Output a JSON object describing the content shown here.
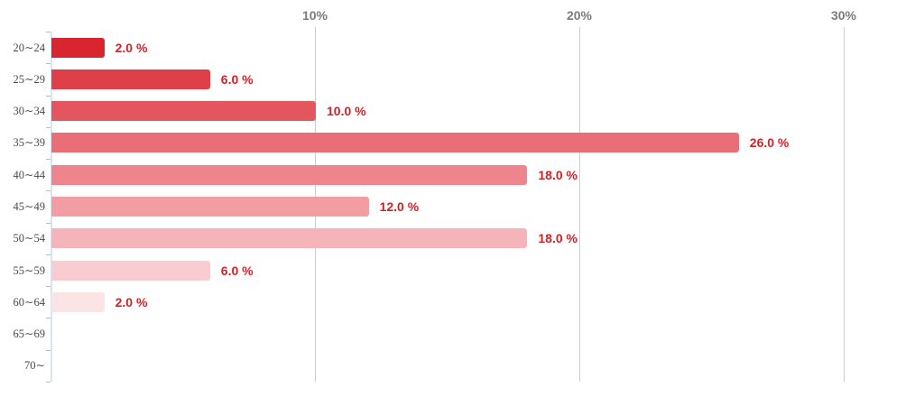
{
  "chart_data": {
    "type": "bar",
    "orientation": "horizontal",
    "title": "",
    "xlabel": "",
    "ylabel": "",
    "categories": [
      "20∼24",
      "25∼29",
      "30∼34",
      "35∼39",
      "40∼44",
      "45∼49",
      "50∼54",
      "55∼59",
      "60∼64",
      "65∼69",
      "70∼"
    ],
    "values": [
      2.0,
      6.0,
      10.0,
      26.0,
      18.0,
      12.0,
      18.0,
      6.0,
      2.0,
      0,
      0
    ],
    "data_labels": [
      "2.0 %",
      "6.0 %",
      "10.0 %",
      "26.0 %",
      "18.0 %",
      "12.0 %",
      "18.0 %",
      "6.0 %",
      "2.0 %",
      "",
      ""
    ],
    "bar_colors": [
      "#d8252f",
      "#de3f49",
      "#e4565f",
      "#ea6e77",
      "#ee858d",
      "#f19da3",
      "#f4b4b9",
      "#f8ccd0",
      "#fbe4e6",
      "",
      ""
    ],
    "x_tick_labels": [
      "10%",
      "20%",
      "30%"
    ],
    "x_tick_values": [
      10,
      20,
      30
    ],
    "xlim": [
      0,
      33
    ],
    "grid": "vertical",
    "legend": "none",
    "colors": {
      "value_label": "#d71f25",
      "x_axis_label": "#7b7b7b",
      "category_label": "#4a4a4a",
      "gridline": "#cccccc",
      "axis_line": "#d9e4f0",
      "axis_tick": "#a9c1d6",
      "background": "#ffffff"
    }
  }
}
